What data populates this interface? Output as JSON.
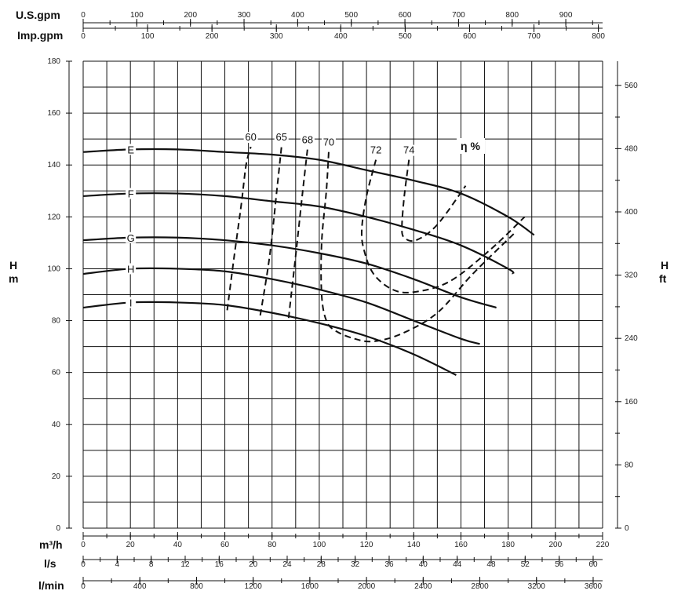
{
  "chart_data": {
    "type": "line",
    "title": "",
    "grid": true,
    "x_axes": {
      "usgpm": {
        "label": "U.S.gpm",
        "ticks": [
          "0",
          "100",
          "200",
          "300",
          "400",
          "500",
          "600",
          "700",
          "800",
          "900"
        ]
      },
      "impgpm": {
        "label": "Imp.gpm",
        "ticks": [
          "0",
          "100",
          "200",
          "300",
          "400",
          "500",
          "600",
          "700",
          "800"
        ]
      },
      "m3h": {
        "label": "m³/h",
        "range": [
          0,
          220
        ],
        "ticks": [
          "0",
          "20",
          "40",
          "60",
          "80",
          "100",
          "120",
          "140",
          "160",
          "180",
          "200",
          "220"
        ]
      },
      "ls": {
        "label": "l/s",
        "ticks": [
          "0",
          "4",
          "8",
          "12",
          "16",
          "20",
          "24",
          "28",
          "32",
          "36",
          "40",
          "44",
          "48",
          "52",
          "56",
          "60"
        ]
      },
      "lmin": {
        "label": "l/min",
        "ticks": [
          "0",
          "400",
          "800",
          "1200",
          "1600",
          "2000",
          "2400",
          "2800",
          "3200",
          "3600"
        ]
      }
    },
    "y_axes": {
      "left": {
        "label_top": "H",
        "label_bottom": "m",
        "range": [
          0,
          180
        ],
        "ticks": [
          "0",
          "20",
          "40",
          "60",
          "80",
          "100",
          "120",
          "140",
          "160",
          "180"
        ]
      },
      "right": {
        "label_top": "H",
        "label_bottom": "ft",
        "ticks": [
          "0",
          "80",
          "160",
          "240",
          "320",
          "400",
          "480",
          "560"
        ]
      }
    },
    "series": [
      {
        "name": "E",
        "x": [
          0,
          20,
          40,
          60,
          80,
          100,
          120,
          140,
          160,
          180,
          191
        ],
        "y": [
          145,
          146,
          146,
          145,
          144,
          142,
          138,
          134,
          129,
          120,
          113
        ]
      },
      {
        "name": "F",
        "x": [
          0,
          20,
          40,
          60,
          80,
          100,
          120,
          140,
          160,
          180,
          182
        ],
        "y": [
          128,
          129,
          129,
          128,
          126,
          124,
          120,
          115,
          109,
          100,
          98
        ]
      },
      {
        "name": "G",
        "x": [
          0,
          20,
          40,
          60,
          80,
          100,
          120,
          140,
          160,
          175
        ],
        "y": [
          111,
          112,
          112,
          111,
          109,
          106,
          102,
          96,
          89,
          85
        ]
      },
      {
        "name": "H",
        "x": [
          0,
          20,
          40,
          60,
          80,
          100,
          120,
          140,
          160,
          168
        ],
        "y": [
          98,
          100,
          100,
          99,
          96,
          92,
          87,
          80,
          73,
          71
        ]
      },
      {
        "name": "I",
        "x": [
          0,
          20,
          40,
          60,
          80,
          100,
          120,
          140,
          158
        ],
        "y": [
          85,
          87,
          87,
          86,
          83,
          79,
          74,
          67,
          59
        ]
      }
    ],
    "efficiency_label": "η %",
    "efficiency_curves": [
      {
        "name": "60",
        "x": [
          61,
          64,
          67,
          69,
          71
        ],
        "y": [
          84,
          105,
          125,
          140,
          147
        ]
      },
      {
        "name": "65",
        "x": [
          75,
          79,
          82,
          84
        ],
        "y": [
          82,
          105,
          130,
          147
        ]
      },
      {
        "name": "68",
        "x": [
          87,
          90,
          93,
          95
        ],
        "y": [
          81,
          105,
          130,
          146
        ]
      },
      {
        "name": "70",
        "x": [
          104,
          103,
          101,
          101,
          103,
          107,
          115,
          123,
          135,
          150,
          165,
          183
        ],
        "y": [
          145,
          130,
          110,
          90,
          80,
          76,
          73,
          72,
          75,
          83,
          98,
          114
        ]
      },
      {
        "name": "72",
        "x": [
          124,
          120,
          118,
          119,
          123,
          131,
          140,
          155,
          172,
          187
        ],
        "y": [
          142,
          128,
          115,
          107,
          98,
          92,
          91,
          95,
          107,
          120
        ]
      },
      {
        "name": "74",
        "x": [
          138,
          136,
          135,
          136,
          141,
          150,
          162
        ],
        "y": [
          142,
          128,
          116,
          112,
          111,
          117,
          132
        ]
      }
    ]
  }
}
